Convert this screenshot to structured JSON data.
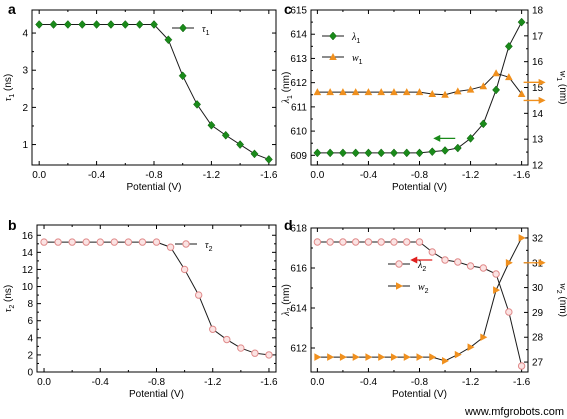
{
  "watermark": "www.mfgrobots.com",
  "chart_data": [
    {
      "type": "line",
      "panel": "a",
      "xlabel": "Potential (V)",
      "ylabel": "τ1 (ns)",
      "ylabel_parts": [
        "τ",
        "1",
        " (ns)"
      ],
      "xticks": [
        0.0,
        -0.4,
        -0.8,
        -1.2,
        -1.6
      ],
      "xtick_labels": [
        "0.0",
        "-0.4",
        "-0.8",
        "-1.2",
        "-1.6"
      ],
      "xlim": [
        0.05,
        -1.65
      ],
      "yticks": [
        1,
        2,
        3,
        4
      ],
      "ytick_labels": [
        "1",
        "2",
        "3",
        "4"
      ],
      "ylim": [
        0.45,
        4.62
      ],
      "grid": false,
      "legend": "top-right",
      "series": [
        {
          "name": "τ1",
          "name_parts": [
            "τ",
            "1"
          ],
          "marker": "diamond",
          "color": "#1a8a1a",
          "x": [
            0.0,
            -0.1,
            -0.2,
            -0.3,
            -0.4,
            -0.5,
            -0.6,
            -0.7,
            -0.8,
            -0.9,
            -1.0,
            -1.1,
            -1.2,
            -1.3,
            -1.4,
            -1.5,
            -1.6
          ],
          "y": [
            4.23,
            4.23,
            4.23,
            4.23,
            4.23,
            4.23,
            4.23,
            4.23,
            4.23,
            3.82,
            2.85,
            2.08,
            1.52,
            1.25,
            1.0,
            0.75,
            0.6
          ]
        }
      ]
    },
    {
      "type": "line",
      "panel": "b",
      "xlabel": "Potential (V)",
      "ylabel": "τ2 (ns)",
      "ylabel_parts": [
        "τ",
        "2",
        " (ns)"
      ],
      "xticks": [
        0.0,
        -0.4,
        -0.8,
        -1.2,
        -1.6
      ],
      "xtick_labels": [
        "0.0",
        "-0.4",
        "-0.8",
        "-1.2",
        "-1.6"
      ],
      "xlim": [
        0.05,
        -1.65
      ],
      "yticks": [
        0,
        2,
        4,
        6,
        8,
        10,
        12,
        14,
        16
      ],
      "ytick_labels": [
        "0",
        "2",
        "4",
        "6",
        "8",
        "10",
        "12",
        "14",
        "16"
      ],
      "ylim": [
        0,
        17.2
      ],
      "grid": false,
      "legend": "top-right",
      "series": [
        {
          "name": "τ2",
          "name_parts": [
            "τ",
            "2"
          ],
          "marker": "circle-open",
          "color": "#e08a8a",
          "x": [
            0.0,
            -0.1,
            -0.2,
            -0.3,
            -0.4,
            -0.5,
            -0.6,
            -0.7,
            -0.8,
            -0.9,
            -1.0,
            -1.1,
            -1.2,
            -1.3,
            -1.4,
            -1.5,
            -1.6
          ],
          "y": [
            15.2,
            15.2,
            15.2,
            15.2,
            15.2,
            15.2,
            15.2,
            15.2,
            15.2,
            14.6,
            12.0,
            9.0,
            5.0,
            3.8,
            2.8,
            2.2,
            2.0
          ]
        }
      ]
    },
    {
      "type": "line",
      "panel": "c",
      "xlabel": "Potential (V)",
      "ylabel": "λ1 (nm)",
      "ylabel_parts": [
        "λ",
        "1",
        " (nm)"
      ],
      "y2label": "w1 (nm)",
      "y2label_parts": [
        "w",
        "1",
        " (nm)"
      ],
      "xticks": [
        0.0,
        -0.4,
        -0.8,
        -1.2,
        -1.6
      ],
      "xtick_labels": [
        "0.0",
        "-0.4",
        "-0.8",
        "-1.2",
        "-1.6"
      ],
      "xlim": [
        0.05,
        -1.65
      ],
      "yticks": [
        609,
        610,
        611,
        612,
        613,
        614,
        615
      ],
      "ytick_labels": [
        "609",
        "610",
        "611",
        "612",
        "613",
        "614",
        "615"
      ],
      "ylim": [
        608.6,
        615.0
      ],
      "y2ticks": [
        12,
        13,
        14,
        15,
        16,
        17,
        18
      ],
      "y2tick_labels": [
        "12",
        "13",
        "14",
        "15",
        "16",
        "17",
        "18"
      ],
      "y2lim": [
        12.0,
        18.0
      ],
      "grid": false,
      "legend": "top-left",
      "series": [
        {
          "name": "λ1",
          "name_parts": [
            "λ",
            "1"
          ],
          "marker": "diamond",
          "color": "#1a8a1a",
          "axis": "left",
          "x": [
            0.0,
            -0.1,
            -0.2,
            -0.3,
            -0.4,
            -0.5,
            -0.6,
            -0.7,
            -0.8,
            -0.9,
            -1.0,
            -1.1,
            -1.2,
            -1.3,
            -1.4,
            -1.5,
            -1.6
          ],
          "y": [
            609.1,
            609.1,
            609.1,
            609.1,
            609.1,
            609.1,
            609.1,
            609.1,
            609.1,
            609.15,
            609.2,
            609.3,
            609.7,
            610.3,
            611.7,
            613.5,
            614.5
          ]
        },
        {
          "name": "w1",
          "name_parts": [
            "w",
            "1"
          ],
          "marker": "triangle",
          "color": "#f0901e",
          "axis": "right",
          "x": [
            0.0,
            -0.1,
            -0.2,
            -0.3,
            -0.4,
            -0.5,
            -0.6,
            -0.7,
            -0.8,
            -0.9,
            -1.0,
            -1.1,
            -1.2,
            -1.3,
            -1.4,
            -1.5,
            -1.6
          ],
          "y": [
            14.82,
            14.82,
            14.82,
            14.82,
            14.82,
            14.82,
            14.82,
            14.82,
            14.82,
            14.75,
            14.72,
            14.85,
            14.92,
            15.05,
            15.55,
            15.4,
            14.75
          ]
        }
      ],
      "arrows": [
        {
          "to": "left",
          "color": "#1a8a1a",
          "x": -1.08,
          "y": 609.7
        },
        {
          "to": "right",
          "color": "#f0901e",
          "x": -1.6,
          "y": 15.2
        },
        {
          "to": "right",
          "color": "#f0901e",
          "x": -1.6,
          "y": 14.5
        }
      ]
    },
    {
      "type": "line",
      "panel": "d",
      "xlabel": "Potential (V)",
      "ylabel": "λ2 (nm)",
      "ylabel_parts": [
        "λ",
        "2",
        " (nm)"
      ],
      "y2label": "w2 (nm)",
      "y2label_parts": [
        "w",
        "2",
        " (nm)"
      ],
      "xticks": [
        0.0,
        -0.4,
        -0.8,
        -1.2,
        -1.6
      ],
      "xtick_labels": [
        "0.0",
        "-0.4",
        "-0.8",
        "-1.2",
        "-1.6"
      ],
      "xlim": [
        0.05,
        -1.65
      ],
      "yticks": [
        612,
        614,
        616,
        618
      ],
      "ytick_labels": [
        "612",
        "614",
        "616",
        "618"
      ],
      "ylim": [
        610.8,
        618.0
      ],
      "y2ticks": [
        27,
        28,
        29,
        30,
        31,
        32
      ],
      "y2tick_labels": [
        "27",
        "28",
        "29",
        "30",
        "31",
        "32"
      ],
      "y2lim": [
        26.6,
        32.4
      ],
      "grid": false,
      "legend": "top-center",
      "series": [
        {
          "name": "λ2",
          "name_parts": [
            "λ",
            "2"
          ],
          "marker": "circle-open",
          "color": "#e08a8a",
          "axis": "left",
          "x": [
            0.0,
            -0.1,
            -0.2,
            -0.3,
            -0.4,
            -0.5,
            -0.6,
            -0.7,
            -0.8,
            -0.9,
            -1.0,
            -1.1,
            -1.2,
            -1.3,
            -1.4,
            -1.5,
            -1.6
          ],
          "y": [
            617.3,
            617.3,
            617.3,
            617.3,
            617.3,
            617.3,
            617.3,
            617.3,
            617.3,
            616.8,
            616.4,
            616.3,
            616.1,
            616.0,
            615.7,
            613.8,
            611.1
          ]
        },
        {
          "name": "w2",
          "name_parts": [
            "w",
            "2"
          ],
          "marker": "triangle-right",
          "color": "#f0901e",
          "axis": "right",
          "x": [
            0.0,
            -0.1,
            -0.2,
            -0.3,
            -0.4,
            -0.5,
            -0.6,
            -0.7,
            -0.8,
            -0.9,
            -1.0,
            -1.1,
            -1.2,
            -1.3,
            -1.4,
            -1.5,
            -1.6
          ],
          "y": [
            27.2,
            27.2,
            27.2,
            27.2,
            27.2,
            27.2,
            27.2,
            27.2,
            27.2,
            27.2,
            27.05,
            27.3,
            27.6,
            28.0,
            29.9,
            31.0,
            32.0
          ]
        }
      ],
      "arrows": [
        {
          "to": "left",
          "color": "#e0201e",
          "x": -0.9,
          "y": 616.4
        },
        {
          "to": "right",
          "color": "#f0901e",
          "x": -1.6,
          "y": 31.0
        }
      ]
    }
  ]
}
